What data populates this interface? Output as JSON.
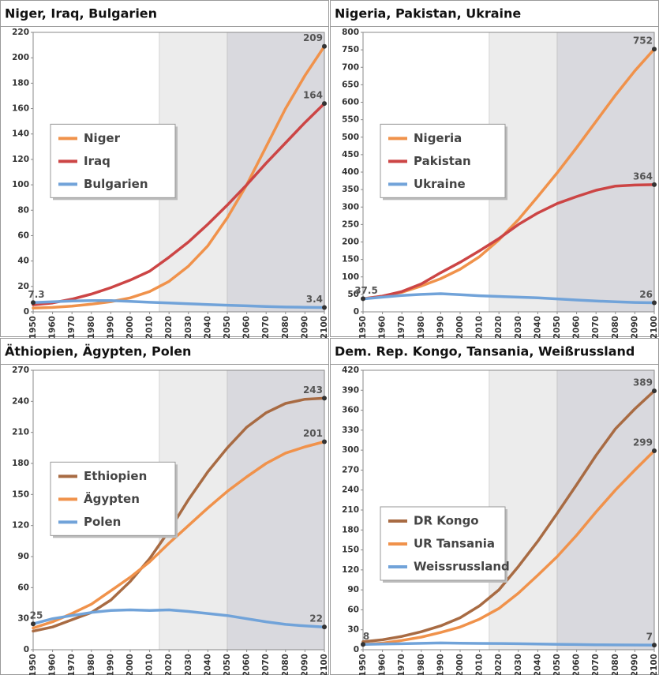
{
  "chart_data": [
    {
      "type": "line",
      "title": "Niger, Iraq, Bulgarien",
      "x": [
        1950,
        1960,
        1970,
        1980,
        1990,
        2000,
        2010,
        2020,
        2030,
        2040,
        2050,
        2060,
        2070,
        2080,
        2090,
        2100
      ],
      "xlim": [
        1950,
        2100
      ],
      "xticks": [
        1950,
        1960,
        1970,
        1980,
        1990,
        2000,
        2010,
        2020,
        2030,
        2040,
        2050,
        2060,
        2070,
        2080,
        2090,
        2100
      ],
      "ylim": [
        0,
        220
      ],
      "yticks": [
        0,
        20,
        40,
        60,
        80,
        100,
        120,
        140,
        160,
        180,
        200,
        220
      ],
      "legend": "center-left",
      "shaded": [
        {
          "from": 2015,
          "to": 2050,
          "color": "#ececec"
        },
        {
          "from": 2050,
          "to": 2100,
          "color": "#d9d9de"
        }
      ],
      "series": [
        {
          "name": "Niger",
          "color": "#f0924b",
          "values": [
            3,
            3.5,
            4.5,
            6,
            8,
            11,
            16,
            24,
            36,
            52,
            74,
            100,
            130,
            160,
            186,
            209
          ]
        },
        {
          "name": "Iraq",
          "color": "#cc4545",
          "values": [
            5.5,
            7,
            10,
            14,
            19,
            25,
            32,
            43,
            55,
            69,
            84,
            100,
            117,
            133,
            149,
            164
          ]
        },
        {
          "name": "Bulgarien",
          "color": "#71a3d9",
          "values": [
            7.3,
            7.9,
            8.5,
            8.9,
            8.8,
            8.2,
            7.5,
            7,
            6.4,
            5.8,
            5.2,
            4.7,
            4.2,
            3.8,
            3.6,
            3.4
          ]
        }
      ],
      "annotations": [
        {
          "x": 1950,
          "y": 7.3
        },
        {
          "x": 2100,
          "y": 209
        },
        {
          "x": 2100,
          "y": 164
        },
        {
          "x": 2100,
          "y": 3.4
        }
      ]
    },
    {
      "type": "line",
      "title": "Nigeria, Pakistan, Ukraine",
      "x": [
        1950,
        1960,
        1970,
        1980,
        1990,
        2000,
        2010,
        2020,
        2030,
        2040,
        2050,
        2060,
        2070,
        2080,
        2090,
        2100
      ],
      "xlim": [
        1950,
        2100
      ],
      "xticks": [
        1950,
        1960,
        1970,
        1980,
        1990,
        2000,
        2010,
        2020,
        2030,
        2040,
        2050,
        2060,
        2070,
        2080,
        2090,
        2100
      ],
      "ylim": [
        0,
        800
      ],
      "yticks": [
        0,
        50,
        100,
        150,
        200,
        250,
        300,
        350,
        400,
        450,
        500,
        550,
        600,
        650,
        700,
        750,
        800
      ],
      "legend": "center-left",
      "shaded": [
        {
          "from": 2015,
          "to": 2050,
          "color": "#ececec"
        },
        {
          "from": 2050,
          "to": 2100,
          "color": "#d9d9de"
        }
      ],
      "series": [
        {
          "name": "Nigeria",
          "color": "#f0924b",
          "values": [
            37.5,
            45,
            56,
            74,
            95,
            122,
            158,
            206,
            264,
            330,
            398,
            470,
            545,
            620,
            690,
            752
          ]
        },
        {
          "name": "Pakistan",
          "color": "#cc4545",
          "values": [
            37,
            45,
            58,
            80,
            112,
            142,
            175,
            210,
            250,
            283,
            310,
            330,
            348,
            360,
            363,
            364
          ]
        },
        {
          "name": "Ukraine",
          "color": "#71a3d9",
          "values": [
            37,
            42,
            47,
            50,
            52,
            49,
            46,
            44,
            42,
            40,
            37,
            34,
            31,
            29,
            27,
            26
          ]
        }
      ],
      "annotations": [
        {
          "x": 1950,
          "y": 37.5
        },
        {
          "x": 2100,
          "y": 752
        },
        {
          "x": 2100,
          "y": 364
        },
        {
          "x": 2100,
          "y": 26
        }
      ]
    },
    {
      "type": "line",
      "title": "Äthiopien, Ägypten, Polen",
      "x": [
        1950,
        1960,
        1970,
        1980,
        1990,
        2000,
        2010,
        2020,
        2030,
        2040,
        2050,
        2060,
        2070,
        2080,
        2090,
        2100
      ],
      "xlim": [
        1950,
        2100
      ],
      "xticks": [
        1950,
        1960,
        1970,
        1980,
        1990,
        2000,
        2010,
        2020,
        2030,
        2040,
        2050,
        2060,
        2070,
        2080,
        2090,
        2100
      ],
      "ylim": [
        0,
        270
      ],
      "yticks": [
        0,
        30,
        60,
        90,
        120,
        150,
        180,
        210,
        240,
        270
      ],
      "legend": "center-left",
      "shaded": [
        {
          "from": 2015,
          "to": 2050,
          "color": "#ececec"
        },
        {
          "from": 2050,
          "to": 2100,
          "color": "#d9d9de"
        }
      ],
      "series": [
        {
          "name": "Ethiopien",
          "color": "#a86b43",
          "values": [
            18,
            22,
            29,
            36,
            48,
            66,
            88,
            115,
            145,
            172,
            195,
            215,
            229,
            238,
            242,
            243
          ]
        },
        {
          "name": "Ägypten",
          "color": "#f0924b",
          "values": [
            21,
            27,
            35,
            44,
            57,
            70,
            85,
            103,
            120,
            137,
            153,
            167,
            180,
            190,
            196,
            201
          ]
        },
        {
          "name": "Polen",
          "color": "#71a3d9",
          "values": [
            25,
            30,
            33,
            36,
            38,
            38.5,
            38,
            38.5,
            37,
            35,
            33,
            30,
            27,
            24.5,
            23,
            22
          ]
        }
      ],
      "annotations": [
        {
          "x": 1950,
          "y": 25
        },
        {
          "x": 2100,
          "y": 243
        },
        {
          "x": 2100,
          "y": 201
        },
        {
          "x": 2100,
          "y": 22
        }
      ]
    },
    {
      "type": "line",
      "title": "Dem. Rep. Kongo, Tansania, Weißrussland",
      "x": [
        1950,
        1960,
        1970,
        1980,
        1990,
        2000,
        2010,
        2020,
        2030,
        2040,
        2050,
        2060,
        2070,
        2080,
        2090,
        2100
      ],
      "xlim": [
        1950,
        2100
      ],
      "xticks": [
        1950,
        1960,
        1970,
        1980,
        1990,
        2000,
        2010,
        2020,
        2030,
        2040,
        2050,
        2060,
        2070,
        2080,
        2090,
        2100
      ],
      "ylim": [
        0,
        420
      ],
      "yticks": [
        0,
        30,
        60,
        90,
        120,
        150,
        180,
        210,
        240,
        270,
        300,
        330,
        360,
        390,
        420
      ],
      "legend": "lower-left",
      "shaded": [
        {
          "from": 2015,
          "to": 2050,
          "color": "#ececec"
        },
        {
          "from": 2050,
          "to": 2100,
          "color": "#d9d9de"
        }
      ],
      "series": [
        {
          "name": "DR Kongo",
          "color": "#a86b43",
          "values": [
            12,
            15,
            20,
            27,
            36,
            48,
            66,
            90,
            125,
            163,
            205,
            248,
            292,
            332,
            362,
            389
          ]
        },
        {
          "name": "UR Tansania",
          "color": "#f0924b",
          "values": [
            8,
            10,
            14,
            19,
            26,
            34,
            46,
            62,
            85,
            112,
            140,
            172,
            207,
            240,
            270,
            299
          ]
        },
        {
          "name": "Weissrussland",
          "color": "#71a3d9",
          "values": [
            8,
            8.5,
            9,
            9.6,
            10.2,
            9.9,
            9.5,
            9.4,
            9,
            8.6,
            8.2,
            7.8,
            7.5,
            7.2,
            7.1,
            7
          ]
        }
      ],
      "annotations": [
        {
          "x": 1950,
          "y": 8
        },
        {
          "x": 2100,
          "y": 389
        },
        {
          "x": 2100,
          "y": 299
        },
        {
          "x": 2100,
          "y": 7
        }
      ]
    }
  ]
}
